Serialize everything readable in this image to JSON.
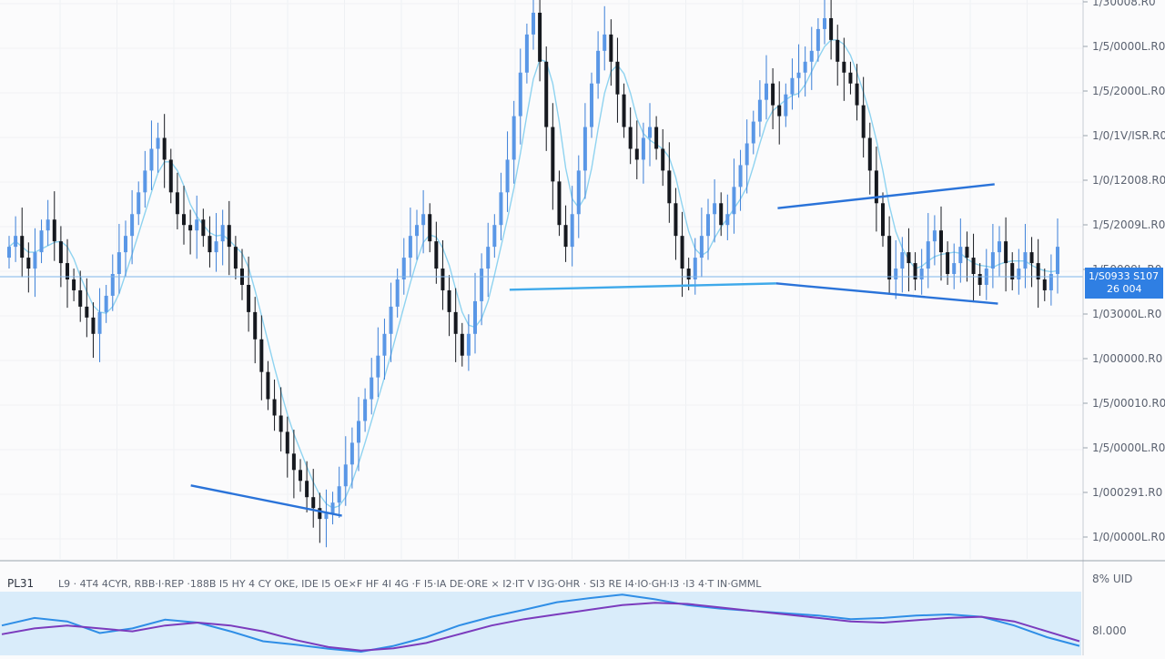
{
  "chart_data": {
    "type": "candlestick",
    "price_axis_labels": [
      "1/30008.R0",
      "1/5/0000L.R0",
      "1/5/2000L.R0",
      "1/0/1V/ISR.R0",
      "1/0/12008.R0",
      "1/5/2009L.R0",
      "1/50009L.R0",
      "1/03000L.R0",
      "1/000000.R0",
      "1/5/00010.R0",
      "1/5/0000L.R0",
      "1/000291.R0",
      "1/0/0000L.R0"
    ],
    "current_price_label": "1/S0933 S107",
    "current_price_sub": "26 004",
    "current_price_level": 0.505,
    "price_range": [
      0,
      1
    ],
    "candles": [
      0.56,
      0.58,
      0.54,
      0.52,
      0.55,
      0.59,
      0.61,
      0.57,
      0.53,
      0.5,
      0.48,
      0.45,
      0.43,
      0.4,
      0.44,
      0.47,
      0.51,
      0.55,
      0.58,
      0.62,
      0.66,
      0.7,
      0.74,
      0.76,
      0.72,
      0.66,
      0.62,
      0.6,
      0.59,
      0.61,
      0.58,
      0.55,
      0.57,
      0.6,
      0.56,
      0.52,
      0.49,
      0.44,
      0.39,
      0.33,
      0.28,
      0.25,
      0.22,
      0.18,
      0.15,
      0.13,
      0.1,
      0.08,
      0.06,
      0.07,
      0.09,
      0.12,
      0.16,
      0.2,
      0.24,
      0.28,
      0.32,
      0.36,
      0.4,
      0.45,
      0.5,
      0.54,
      0.58,
      0.6,
      0.62,
      0.57,
      0.52,
      0.48,
      0.44,
      0.4,
      0.36,
      0.4,
      0.46,
      0.52,
      0.56,
      0.6,
      0.66,
      0.72,
      0.8,
      0.88,
      0.95,
      0.99,
      0.9,
      0.78,
      0.68,
      0.6,
      0.56,
      0.62,
      0.7,
      0.78,
      0.86,
      0.92,
      0.95,
      0.9,
      0.84,
      0.78,
      0.74,
      0.72,
      0.76,
      0.78,
      0.74,
      0.7,
      0.64,
      0.58,
      0.52,
      0.5,
      0.54,
      0.58,
      0.62,
      0.64,
      0.6,
      0.62,
      0.67,
      0.71,
      0.75,
      0.79,
      0.83,
      0.86,
      0.82,
      0.8,
      0.84,
      0.87,
      0.88,
      0.9,
      0.92,
      0.96,
      0.98,
      0.94,
      0.9,
      0.88,
      0.86,
      0.82,
      0.76,
      0.7,
      0.64,
      0.58,
      0.5,
      0.52,
      0.55,
      0.53,
      0.5,
      0.52,
      0.57,
      0.59,
      0.55,
      0.51,
      0.53,
      0.56,
      0.54,
      0.51,
      0.49,
      0.52,
      0.55,
      0.57,
      0.53,
      0.5,
      0.52,
      0.55,
      0.53,
      0.5,
      0.48,
      0.51,
      0.56
    ],
    "moving_average": true,
    "trendlines": [
      {
        "from": [
          0.174,
          0.1215
        ],
        "to": [
          0.3144,
          0.066
        ]
      },
      {
        "from": [
          0.4703,
          0.481
        ],
        "to": [
          0.718,
          0.4927
        ]
      },
      {
        "from": [
          0.718,
          0.4927
        ],
        "to": [
          0.9242,
          0.4555
        ]
      },
      {
        "from": [
          0.7195,
          0.631
        ],
        "to": [
          0.9211,
          0.6749
        ]
      }
    ],
    "oscillator_header": "PL31",
    "oscillator_legend": "L9 · 4T4 4CYR, RBB·I·REP ·188B I5 HY 4 CY OKE, IDE I5 OE×F HF 4I 4G ·F I5·IA DE·ORE × I2·IT V I3G·OHR · SI3 RE I4·IO·GH·I3 ·I3 4·T IN·GMML",
    "oscillator_axis_labels": [
      "8% UID",
      "8l.000"
    ],
    "oscillator_series": [
      {
        "color": "#2f8ee6",
        "values": [
          0.45,
          0.58,
          0.52,
          0.32,
          0.4,
          0.55,
          0.5,
          0.35,
          0.18,
          0.12,
          0.05,
          0.0,
          0.1,
          0.25,
          0.45,
          0.6,
          0.72,
          0.85,
          0.92,
          0.98,
          0.9,
          0.8,
          0.74,
          0.7,
          0.66,
          0.62,
          0.56,
          0.58,
          0.62,
          0.64,
          0.6,
          0.45,
          0.25,
          0.1
        ]
      },
      {
        "color": "#7b3bbd",
        "values": [
          0.3,
          0.4,
          0.45,
          0.4,
          0.35,
          0.45,
          0.5,
          0.45,
          0.35,
          0.2,
          0.08,
          0.02,
          0.06,
          0.15,
          0.3,
          0.45,
          0.56,
          0.64,
          0.72,
          0.8,
          0.84,
          0.82,
          0.76,
          0.7,
          0.64,
          0.58,
          0.52,
          0.5,
          0.54,
          0.58,
          0.6,
          0.52,
          0.35,
          0.18
        ]
      }
    ]
  }
}
